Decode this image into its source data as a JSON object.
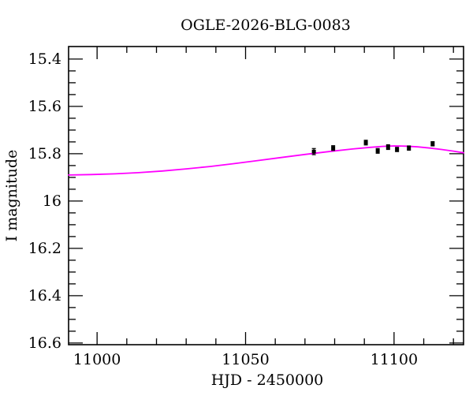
{
  "colors": {
    "background": "#ffffff",
    "frame": "#000000",
    "model_curve": "#ff00ff",
    "data_points": "#000000"
  },
  "chart_data": {
    "type": "line",
    "title": "OGLE-2026-BLG-0083",
    "xlabel": "HJD - 2450000",
    "ylabel": "I magnitude",
    "xlim": [
      10990.4,
      11123.4
    ],
    "ylim_top": 15.347,
    "ylim_bottom": 16.607,
    "y_axis_inverted": true,
    "grid": false,
    "legend": "none",
    "x_ticks": {
      "major": [
        11000,
        11050,
        11100
      ],
      "major_labels": [
        "11000",
        "11050",
        "11100"
      ],
      "minor_step": 10
    },
    "y_ticks": {
      "major": [
        15.4,
        15.6,
        15.8,
        16.0,
        16.2,
        16.4,
        16.6
      ],
      "major_labels": [
        "15.4",
        "15.6",
        "15.8",
        "16",
        "16.2",
        "16.4",
        "16.6"
      ],
      "minor_step": 0.05
    },
    "series": [
      {
        "name": "microlensing-model-curve",
        "type": "line",
        "color": "#ff00ff",
        "x": [
          10990.4,
          10998,
          11006,
          11014,
          11022,
          11030,
          11038,
          11046,
          11054,
          11062,
          11070,
          11078,
          11086,
          11092,
          11096,
          11100,
          11104,
          11108,
          11112,
          11116,
          11120,
          11123.4
        ],
        "y": [
          15.89,
          15.888,
          15.885,
          15.88,
          15.873,
          15.864,
          15.854,
          15.842,
          15.829,
          15.816,
          15.803,
          15.791,
          15.78,
          15.773,
          15.769,
          15.767,
          15.768,
          15.771,
          15.776,
          15.782,
          15.789,
          15.796
        ]
      },
      {
        "name": "ogle-observations",
        "type": "scatter-errorbar",
        "marker": "filled-square",
        "color": "#000000",
        "points": [
          {
            "x": 11073.0,
            "y": 15.791,
            "err": 0.013
          },
          {
            "x": 11079.5,
            "y": 15.776,
            "err": 0.01
          },
          {
            "x": 11090.5,
            "y": 15.753,
            "err": 0.01
          },
          {
            "x": 11094.5,
            "y": 15.788,
            "err": 0.01
          },
          {
            "x": 11098.0,
            "y": 15.772,
            "err": 0.01
          },
          {
            "x": 11101.0,
            "y": 15.782,
            "err": 0.009
          },
          {
            "x": 11105.0,
            "y": 15.776,
            "err": 0.009
          },
          {
            "x": 11113.0,
            "y": 15.758,
            "err": 0.009
          }
        ]
      }
    ]
  }
}
